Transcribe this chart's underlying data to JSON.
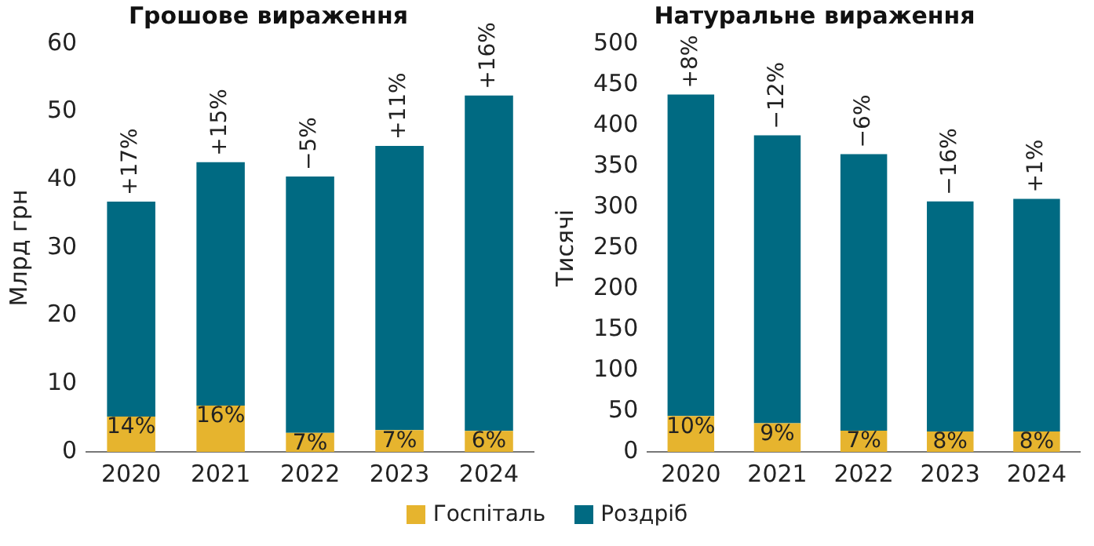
{
  "chart_data": [
    {
      "type": "bar",
      "title": "Грошове вираження",
      "ylabel": "Млрд грн",
      "categories": [
        "2020",
        "2021",
        "2022",
        "2023",
        "2024"
      ],
      "stacked": true,
      "ylim": [
        0,
        60
      ],
      "yticks": [
        0,
        10,
        20,
        30,
        40,
        50,
        60
      ],
      "legend": "bottom",
      "series": [
        {
          "name": "Госпіталь",
          "color": "#e6b42e",
          "values": [
            5.2,
            6.8,
            2.8,
            3.2,
            3.1
          ]
        },
        {
          "name": "Роздріб",
          "color": "#006a82",
          "values": [
            31.6,
            35.8,
            37.7,
            41.8,
            49.3
          ]
        }
      ],
      "annotations": [
        {
          "text": "14%",
          "x": "2020",
          "y": 5.2
        },
        {
          "text": "16%",
          "x": "2021",
          "y": 6.8
        },
        {
          "text": "7%",
          "x": "2022",
          "y": 2.8
        },
        {
          "text": "7%",
          "x": "2023",
          "y": 3.2
        },
        {
          "text": "6%",
          "x": "2024",
          "y": 3.1
        },
        {
          "text": "+17%",
          "x": "2020",
          "y": 36.8
        },
        {
          "text": "+15%",
          "x": "2021",
          "y": 42.6
        },
        {
          "text": "−5%",
          "x": "2022",
          "y": 40.5
        },
        {
          "text": "+11%",
          "x": "2023",
          "y": 45
        },
        {
          "text": "+16%",
          "x": "2024",
          "y": 52.4
        }
      ]
    },
    {
      "type": "bar",
      "title": "Натуральне вираження",
      "ylabel": "Тисячі",
      "categories": [
        "2020",
        "2021",
        "2022",
        "2023",
        "2024"
      ],
      "stacked": true,
      "ylim": [
        0,
        500
      ],
      "yticks": [
        0,
        50,
        100,
        150,
        200,
        250,
        300,
        350,
        400,
        450,
        500
      ],
      "series": [
        {
          "color": "#e6b42e",
          "values": [
            44,
            35,
            26,
            25,
            25
          ]
        },
        {
          "color": "#006a82",
          "values": [
            394,
            353,
            339,
            282,
            285
          ]
        }
      ],
      "annotations": [
        {
          "text": "10%",
          "x": "2020",
          "y": 44
        },
        {
          "text": "9%",
          "x": "2021",
          "y": 35
        },
        {
          "text": "7%",
          "x": "2022",
          "y": 26
        },
        {
          "text": "8%",
          "x": "2023",
          "y": 25
        },
        {
          "text": "8%",
          "x": "2024",
          "y": 25
        },
        {
          "text": "+8%",
          "x": "2020",
          "y": 438
        },
        {
          "text": "−12%",
          "x": "2021",
          "y": 388
        },
        {
          "text": "−6%",
          "x": "2022",
          "y": 365
        },
        {
          "text": "−16%",
          "x": "2023",
          "y": 307
        },
        {
          "text": "+1%",
          "x": "2024",
          "y": 310
        }
      ]
    }
  ]
}
